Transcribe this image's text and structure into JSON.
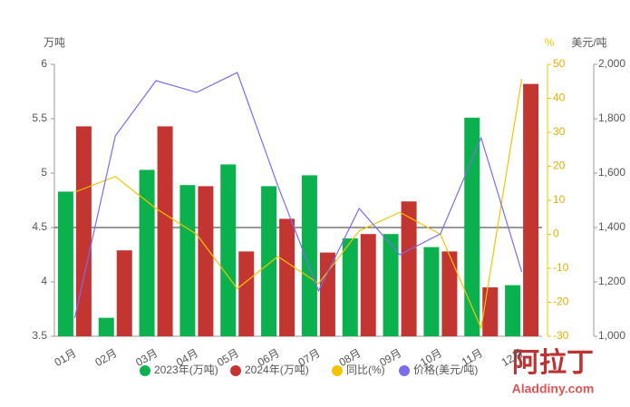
{
  "chart_data": {
    "type": "bar",
    "categories": [
      "01月",
      "02月",
      "03月",
      "04月",
      "05月",
      "06月",
      "07月",
      "08月",
      "09月",
      "10月",
      "11月",
      "12月"
    ],
    "ylabel": "万吨",
    "y2label": "%",
    "y3label": "美元/吨",
    "ylim": [
      3.5,
      6
    ],
    "yticks": [
      3.5,
      4,
      4.5,
      5,
      5.5,
      6
    ],
    "y2lim": [
      -30,
      50
    ],
    "y2ticks": [
      -30,
      -20,
      -10,
      0,
      10,
      20,
      30,
      40,
      50
    ],
    "y3lim": [
      1000,
      2000
    ],
    "y3ticks": [
      {
        "value": 1000,
        "label": "1,000"
      },
      {
        "value": 1200,
        "label": "1,200"
      },
      {
        "value": 1400,
        "label": "1,400"
      },
      {
        "value": 1600,
        "label": "1,600"
      },
      {
        "value": 1800,
        "label": "1,800"
      },
      {
        "value": 2000,
        "label": "2,000"
      }
    ],
    "series": [
      {
        "name": "2023年(万吨)",
        "type": "bar",
        "color": "#0bb14d",
        "values": [
          4.83,
          3.67,
          5.03,
          4.89,
          5.08,
          4.88,
          4.98,
          4.4,
          4.44,
          4.32,
          5.51,
          3.97
        ]
      },
      {
        "name": "2024年(万吨)",
        "type": "bar",
        "color": "#c23531",
        "values": [
          5.43,
          4.29,
          5.43,
          4.88,
          4.28,
          4.58,
          4.27,
          4.44,
          4.74,
          4.28,
          3.95,
          5.82
        ]
      },
      {
        "name": "同比(%)",
        "type": "line",
        "axis": "y2",
        "color": "#f2c400",
        "values": [
          12.4,
          17,
          7.6,
          0,
          -16,
          -6.5,
          -14.5,
          1,
          6.5,
          0,
          -27.6,
          45.7
        ]
      },
      {
        "name": "价格(美元/吨)",
        "type": "line",
        "axis": "y3",
        "color": "#7b6cf0",
        "values": [
          1067,
          1737,
          1940,
          1897,
          1970,
          1553,
          1167,
          1470,
          1300,
          1377,
          1730,
          1237
        ]
      }
    ],
    "watermark": "阿拉丁",
    "watermark_url": "Aladdiny.com"
  }
}
